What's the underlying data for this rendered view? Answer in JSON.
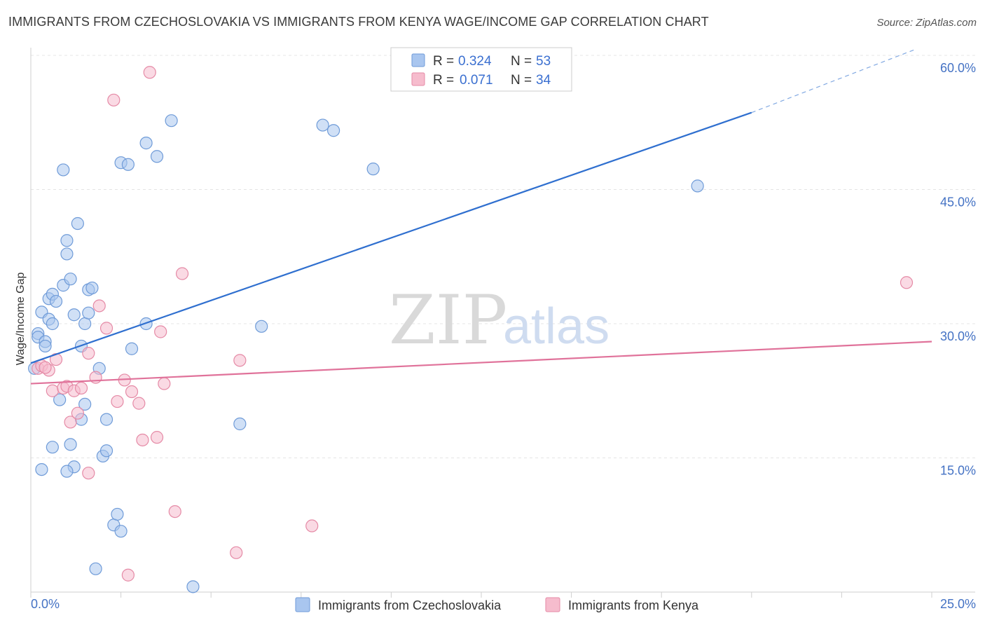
{
  "chart_data": {
    "type": "scatter",
    "title": "IMMIGRANTS FROM CZECHOSLOVAKIA VS IMMIGRANTS FROM KENYA WAGE/INCOME GAP CORRELATION CHART",
    "source": "Source: ZipAtlas.com",
    "ylabel": "Wage/Income Gap",
    "xlabel": "",
    "xlim": [
      0,
      25
    ],
    "ylim": [
      0,
      60
    ],
    "x_tick_labels": [
      "0.0%",
      "25.0%"
    ],
    "y_ticks": [
      15,
      30,
      45,
      60
    ],
    "y_tick_labels": [
      "15.0%",
      "30.0%",
      "45.0%",
      "60.0%"
    ],
    "watermark": {
      "zip": "ZIP",
      "atlas": "atlas"
    },
    "legend": {
      "r_label": "R =",
      "n_label": "N =",
      "entries": [
        {
          "r": "0.324",
          "n": "53"
        },
        {
          "r": "0.071",
          "n": "34"
        }
      ]
    },
    "series": [
      {
        "name": "Immigrants from Czechoslovakia",
        "color": "#a9c6ef",
        "stroke": "#6f9bd8",
        "line_color": "#2f6fcf",
        "trend": {
          "x0": 0,
          "y0": 25.6,
          "x1": 20,
          "y1": 53.6,
          "dash_to_x": 24.5,
          "dash_to_y": 60.6
        },
        "points": [
          [
            0.1,
            25.0
          ],
          [
            0.2,
            28.9
          ],
          [
            0.2,
            28.5
          ],
          [
            0.3,
            31.3
          ],
          [
            0.4,
            28.0
          ],
          [
            0.4,
            27.5
          ],
          [
            0.5,
            32.8
          ],
          [
            0.5,
            30.5
          ],
          [
            0.6,
            30.0
          ],
          [
            0.6,
            33.3
          ],
          [
            0.7,
            32.5
          ],
          [
            0.8,
            21.5
          ],
          [
            0.9,
            47.2
          ],
          [
            0.9,
            34.3
          ],
          [
            1.0,
            39.3
          ],
          [
            1.0,
            37.8
          ],
          [
            1.1,
            35.0
          ],
          [
            1.1,
            16.5
          ],
          [
            1.2,
            14.0
          ],
          [
            1.2,
            31.0
          ],
          [
            1.3,
            41.2
          ],
          [
            1.4,
            19.3
          ],
          [
            1.4,
            27.5
          ],
          [
            1.5,
            21.0
          ],
          [
            1.5,
            30.0
          ],
          [
            1.6,
            31.2
          ],
          [
            1.6,
            33.8
          ],
          [
            1.7,
            34.0
          ],
          [
            1.9,
            25.0
          ],
          [
            2.0,
            15.2
          ],
          [
            2.1,
            19.3
          ],
          [
            2.1,
            15.8
          ],
          [
            2.3,
            7.5
          ],
          [
            2.4,
            8.7
          ],
          [
            2.5,
            6.8
          ],
          [
            2.5,
            48.0
          ],
          [
            2.7,
            47.8
          ],
          [
            2.8,
            27.2
          ],
          [
            3.2,
            50.2
          ],
          [
            3.2,
            30.0
          ],
          [
            3.5,
            48.7
          ],
          [
            3.9,
            52.7
          ],
          [
            4.5,
            0.6
          ],
          [
            5.8,
            18.8
          ],
          [
            6.4,
            29.7
          ],
          [
            8.1,
            52.2
          ],
          [
            8.4,
            51.6
          ],
          [
            9.5,
            47.3
          ],
          [
            18.5,
            45.4
          ],
          [
            0.3,
            13.7
          ],
          [
            0.6,
            16.2
          ],
          [
            1.0,
            13.5
          ],
          [
            1.8,
            2.6
          ]
        ]
      },
      {
        "name": "Immigrants from Kenya",
        "color": "#f6bccd",
        "stroke": "#e58aa6",
        "line_color": "#e0729a",
        "trend": {
          "x0": 0,
          "y0": 23.3,
          "x1": 25,
          "y1": 28.0
        },
        "points": [
          [
            0.2,
            25.0
          ],
          [
            0.3,
            25.3
          ],
          [
            0.5,
            24.8
          ],
          [
            0.6,
            22.5
          ],
          [
            0.7,
            26.0
          ],
          [
            0.9,
            22.8
          ],
          [
            1.0,
            23.0
          ],
          [
            1.1,
            19.0
          ],
          [
            1.2,
            22.5
          ],
          [
            1.3,
            20.0
          ],
          [
            1.4,
            22.8
          ],
          [
            1.6,
            26.7
          ],
          [
            1.8,
            24.0
          ],
          [
            1.9,
            32.0
          ],
          [
            2.1,
            29.5
          ],
          [
            2.3,
            55.0
          ],
          [
            2.4,
            21.3
          ],
          [
            2.6,
            23.7
          ],
          [
            2.7,
            1.9
          ],
          [
            2.8,
            22.4
          ],
          [
            3.0,
            21.1
          ],
          [
            3.1,
            17.0
          ],
          [
            3.3,
            58.1
          ],
          [
            3.5,
            17.3
          ],
          [
            3.6,
            29.1
          ],
          [
            3.7,
            23.3
          ],
          [
            4.0,
            9.0
          ],
          [
            4.2,
            35.6
          ],
          [
            5.7,
            4.4
          ],
          [
            5.8,
            25.9
          ],
          [
            7.8,
            7.4
          ],
          [
            24.3,
            34.6
          ],
          [
            1.6,
            13.3
          ],
          [
            0.4,
            25.1
          ]
        ]
      }
    ]
  }
}
